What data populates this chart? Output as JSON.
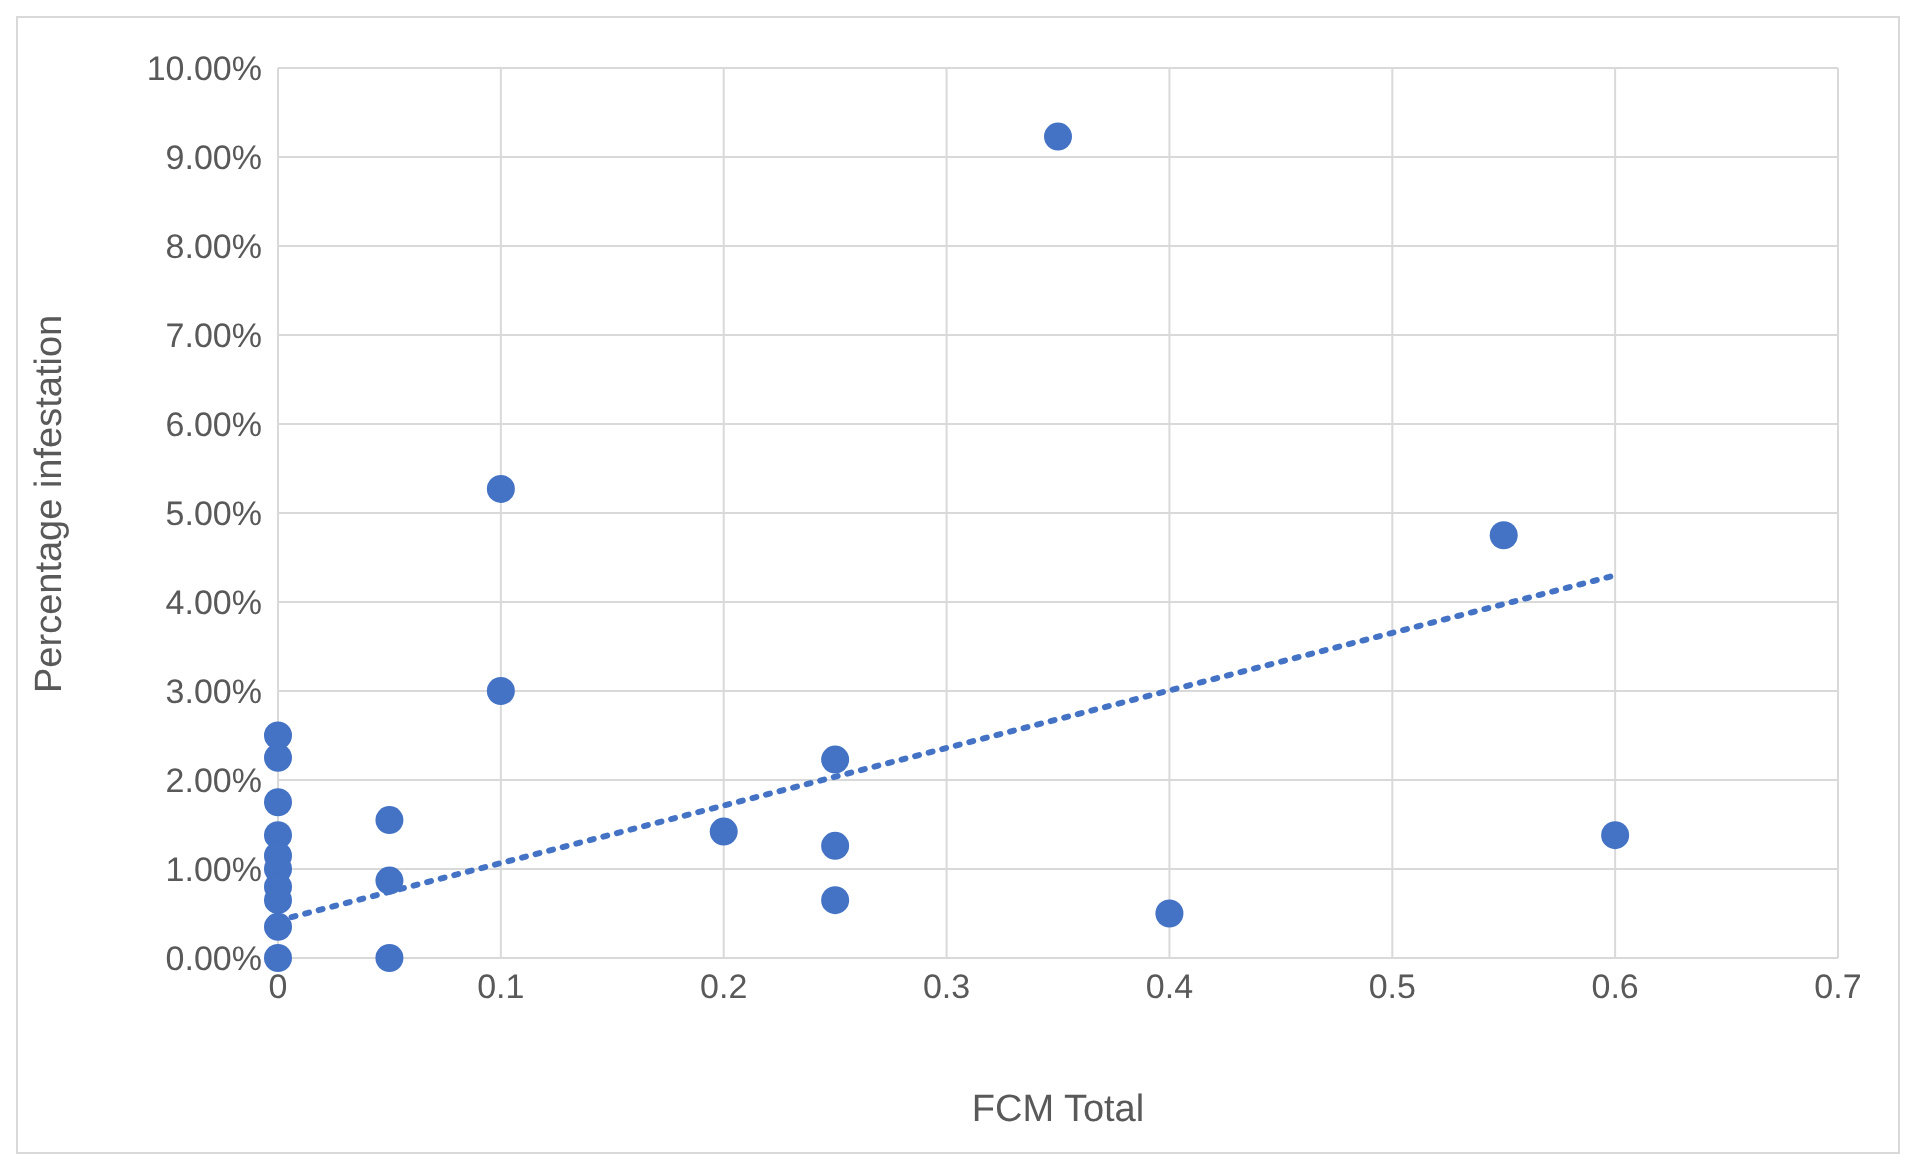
{
  "chart_data": {
    "type": "scatter",
    "xlabel": "FCM Total",
    "ylabel": "Percentage infestation",
    "grid": true,
    "legend": false,
    "xlim": [
      0,
      0.7
    ],
    "xticks": [
      0,
      0.1,
      0.2,
      0.3,
      0.4,
      0.5,
      0.6,
      0.7
    ],
    "ylim": [
      0,
      10
    ],
    "yticks": [
      {
        "value": 0,
        "label": "0.00%"
      },
      {
        "value": 1,
        "label": "1.00%"
      },
      {
        "value": 2,
        "label": "2.00%"
      },
      {
        "value": 3,
        "label": "3.00%"
      },
      {
        "value": 4,
        "label": "4.00%"
      },
      {
        "value": 5,
        "label": "5.00%"
      },
      {
        "value": 6,
        "label": "6.00%"
      },
      {
        "value": 7,
        "label": "7.00%"
      },
      {
        "value": 8,
        "label": "8.00%"
      },
      {
        "value": 9,
        "label": "9.00%"
      },
      {
        "value": 10,
        "label": "10.00%"
      }
    ],
    "series": [
      {
        "color": "#4472c4",
        "marker": "circle",
        "x": [
          0,
          0,
          0,
          0,
          0,
          0,
          0,
          0,
          0,
          0,
          0.05,
          0.05,
          0.05,
          0.1,
          0.1,
          0.2,
          0.25,
          0.25,
          0.25,
          0.35,
          0.4,
          0.55,
          0.6
        ],
        "values": [
          2.5,
          2.25,
          1.75,
          1.38,
          1.15,
          1.0,
          0.8,
          0.65,
          0.35,
          0,
          1.55,
          0.87,
          0,
          5.27,
          3.0,
          1.42,
          2.23,
          1.26,
          0.65,
          9.23,
          0.5,
          4.75,
          1.38
        ]
      },
      {
        "type": "line",
        "color": "#4472c4",
        "marker": "none",
        "line_style": "dotted",
        "x": [
          0,
          0.6
        ],
        "values": [
          0.42,
          4.3
        ]
      }
    ]
  }
}
